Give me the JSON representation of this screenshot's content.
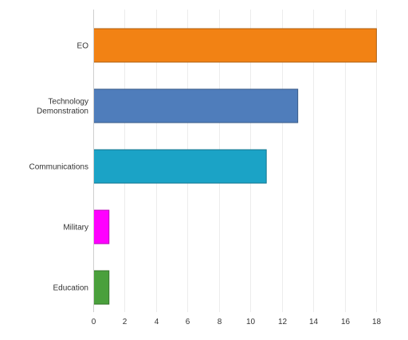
{
  "chart_data": {
    "type": "bar",
    "orientation": "horizontal",
    "categories": [
      "EO",
      "Technology Demonstration",
      "Communications",
      "Military",
      "Education"
    ],
    "category_lines": [
      [
        "EO"
      ],
      [
        "Technology",
        "Demonstration"
      ],
      [
        "Communications"
      ],
      [
        "Military"
      ],
      [
        "Education"
      ]
    ],
    "values": [
      18,
      13,
      11,
      1,
      1
    ],
    "colors": [
      "#f28214",
      "#4f7dbb",
      "#1ba3c6",
      "#ff00ff",
      "#4aa03c"
    ],
    "title": "",
    "xlabel": "",
    "ylabel": "",
    "xlim": [
      0,
      19.5
    ],
    "xticks": [
      0,
      2,
      4,
      6,
      8,
      10,
      12,
      14,
      16,
      18
    ],
    "grid": true,
    "legend": "none"
  }
}
